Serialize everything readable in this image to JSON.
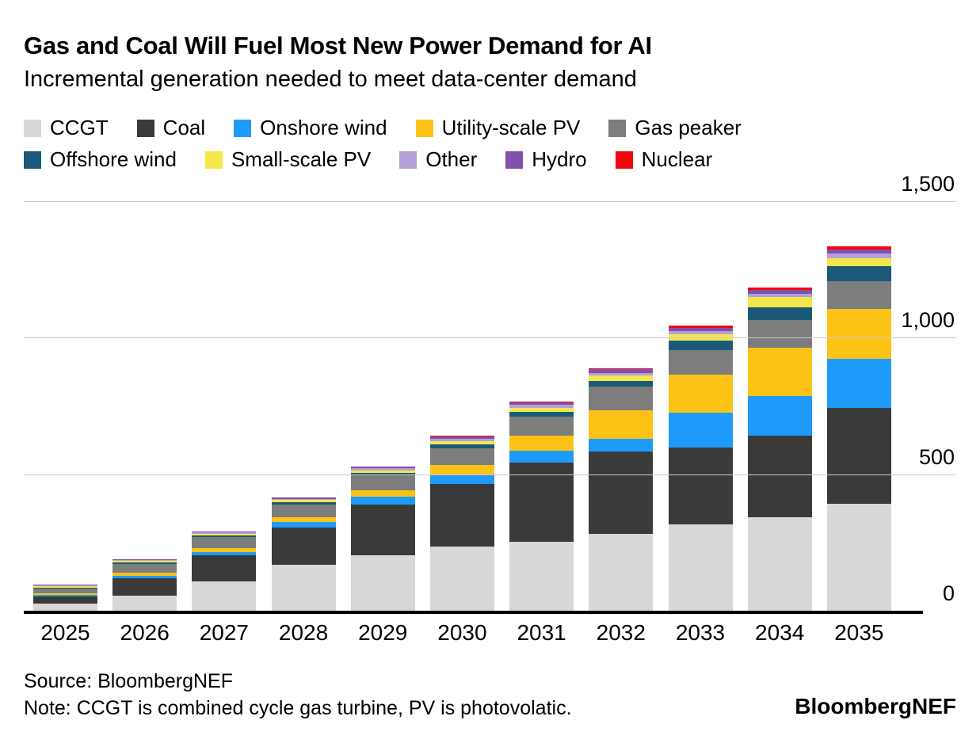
{
  "header": {
    "title": "Gas and Coal Will Fuel Most New Power Demand for AI",
    "subtitle": "Incremental generation needed to meet data-center demand"
  },
  "chart_data": {
    "type": "bar",
    "stacked": true,
    "title": "Gas and Coal Will Fuel Most New Power Demand for AI",
    "subtitle": "Incremental generation needed to meet data-center demand",
    "categories": [
      "2025",
      "2026",
      "2027",
      "2028",
      "2029",
      "2030",
      "2031",
      "2032",
      "2033",
      "2034",
      "2035"
    ],
    "series": [
      {
        "name": "CCGT",
        "color": "#d8d8d8",
        "values": [
          30,
          58,
          110,
          172,
          205,
          238,
          255,
          285,
          320,
          345,
          395
        ]
      },
      {
        "name": "Coal",
        "color": "#3a3a3a",
        "values": [
          25,
          64,
          96,
          136,
          188,
          230,
          292,
          300,
          280,
          300,
          350
        ]
      },
      {
        "name": "Onshore wind",
        "color": "#1e9bfa",
        "values": [
          6,
          10,
          13,
          19,
          27,
          34,
          42,
          48,
          128,
          145,
          180
        ]
      },
      {
        "name": "Utility-scale PV",
        "color": "#fcc216",
        "values": [
          5,
          9,
          13,
          18,
          24,
          36,
          54,
          105,
          140,
          175,
          185
        ]
      },
      {
        "name": "Gas peaker",
        "color": "#7d7d7d",
        "values": [
          18,
          34,
          41,
          47,
          54,
          61,
          72,
          85,
          90,
          102,
          100
        ]
      },
      {
        "name": "Offshore wind",
        "color": "#1a5a78",
        "values": [
          4,
          5,
          6,
          8,
          10,
          14,
          17,
          22,
          33,
          48,
          55
        ]
      },
      {
        "name": "Small-scale PV",
        "color": "#f5e64a",
        "values": [
          4,
          5,
          6,
          8,
          10,
          12,
          15,
          19,
          25,
          36,
          30
        ]
      },
      {
        "name": "Other",
        "color": "#b3a0d6",
        "values": [
          3,
          3,
          4,
          5,
          6,
          8,
          9,
          10,
          12,
          14,
          16
        ]
      },
      {
        "name": "Hydro",
        "color": "#7e51ab",
        "values": [
          3,
          3,
          4,
          5,
          7,
          9,
          11,
          14,
          12,
          14,
          16
        ]
      },
      {
        "name": "Nuclear",
        "color": "#f50510",
        "values": [
          0,
          0,
          0,
          0,
          1,
          2,
          2,
          4,
          7,
          9,
          10
        ]
      }
    ],
    "y_ticks": [
      0,
      500,
      1000,
      1500
    ],
    "y_tick_labels": [
      "0",
      "500",
      "1,000",
      "1,500"
    ],
    "ylim": [
      0,
      1500
    ],
    "grid": "horizontal",
    "legend_position": "top",
    "xlabel": "",
    "ylabel": ""
  },
  "footer": {
    "source": "Source: BloombergNEF",
    "note": "Note: CCGT is combined cycle gas turbine, PV is photovolatic.",
    "brand": "BloombergNEF"
  }
}
